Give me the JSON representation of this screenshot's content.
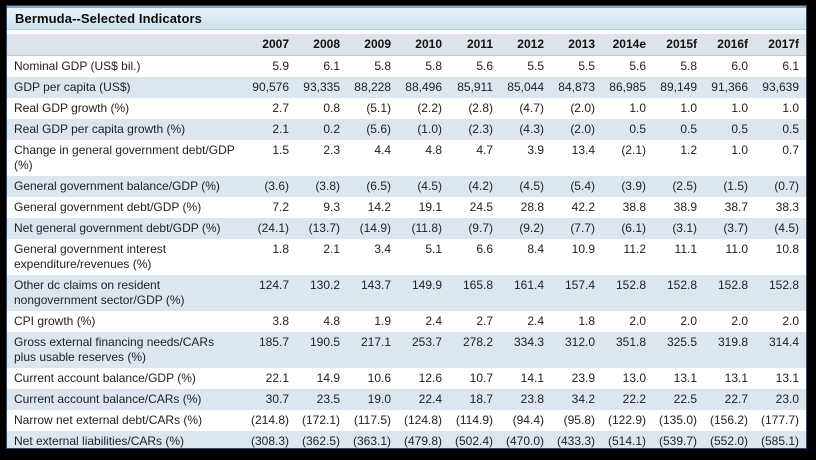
{
  "title": "Bermuda--Selected Indicators",
  "colors": {
    "frame": "#000000",
    "inner_border": "#31506f",
    "title_gradient_top": "#e8f3fa",
    "title_gradient_bottom": "#cde2ef",
    "header_bg": "#dde3ea",
    "row_stripe": "#dce6f1"
  },
  "chart_data": {
    "type": "table",
    "title": "Bermuda--Selected Indicators",
    "year_headers": [
      "2007",
      "2008",
      "2009",
      "2010",
      "2011",
      "2012",
      "2013",
      "2014e",
      "2015f",
      "2016f",
      "2017f"
    ],
    "rows": [
      {
        "label": "Nominal GDP (US$ bil.)",
        "values": [
          "5.9",
          "6.1",
          "5.8",
          "5.8",
          "5.6",
          "5.5",
          "5.5",
          "5.6",
          "5.8",
          "6.0",
          "6.1"
        ]
      },
      {
        "label": "GDP per capita (US$)",
        "values": [
          "90,576",
          "93,335",
          "88,228",
          "88,496",
          "85,911",
          "85,044",
          "84,873",
          "86,985",
          "89,149",
          "91,366",
          "93,639"
        ]
      },
      {
        "label": "Real GDP growth (%)",
        "values": [
          "2.7",
          "0.8",
          "(5.1)",
          "(2.2)",
          "(2.8)",
          "(4.7)",
          "(2.0)",
          "1.0",
          "1.0",
          "1.0",
          "1.0"
        ]
      },
      {
        "label": "Real GDP per capita growth (%)",
        "values": [
          "2.1",
          "0.2",
          "(5.6)",
          "(1.0)",
          "(2.3)",
          "(4.3)",
          "(2.0)",
          "0.5",
          "0.5",
          "0.5",
          "0.5"
        ]
      },
      {
        "label": "Change in general government debt/GDP (%)",
        "values": [
          "1.5",
          "2.3",
          "4.4",
          "4.8",
          "4.7",
          "3.9",
          "13.4",
          "(2.1)",
          "1.2",
          "1.0",
          "0.7"
        ]
      },
      {
        "label": "General government balance/GDP (%)",
        "values": [
          "(3.6)",
          "(3.8)",
          "(6.5)",
          "(4.5)",
          "(4.2)",
          "(4.5)",
          "(5.4)",
          "(3.9)",
          "(2.5)",
          "(1.5)",
          "(0.7)"
        ]
      },
      {
        "label": "General government debt/GDP (%)",
        "values": [
          "7.2",
          "9.3",
          "14.2",
          "19.1",
          "24.5",
          "28.8",
          "42.2",
          "38.8",
          "38.9",
          "38.7",
          "38.3"
        ]
      },
      {
        "label": "Net general government debt/GDP (%)",
        "values": [
          "(24.1)",
          "(13.7)",
          "(14.9)",
          "(11.8)",
          "(9.7)",
          "(9.2)",
          "(7.7)",
          "(6.1)",
          "(3.1)",
          "(3.7)",
          "(4.5)"
        ]
      },
      {
        "label": "General government interest expenditure/revenues (%)",
        "values": [
          "1.8",
          "2.1",
          "3.4",
          "5.1",
          "6.6",
          "8.4",
          "10.9",
          "11.2",
          "11.1",
          "11.0",
          "10.8"
        ]
      },
      {
        "label": "Other dc claims on resident nongovernment sector/GDP (%)",
        "values": [
          "124.7",
          "130.2",
          "143.7",
          "149.9",
          "165.8",
          "161.4",
          "157.4",
          "152.8",
          "152.8",
          "152.8",
          "152.8"
        ]
      },
      {
        "label": "CPI growth (%)",
        "values": [
          "3.8",
          "4.8",
          "1.9",
          "2.4",
          "2.7",
          "2.4",
          "1.8",
          "2.0",
          "2.0",
          "2.0",
          "2.0"
        ]
      },
      {
        "label": "Gross external financing needs/CARs plus usable reserves (%)",
        "values": [
          "185.7",
          "190.5",
          "217.1",
          "253.7",
          "278.2",
          "334.3",
          "312.0",
          "351.8",
          "325.5",
          "319.8",
          "314.4"
        ]
      },
      {
        "label": "Current account balance/GDP (%)",
        "values": [
          "22.1",
          "14.9",
          "10.6",
          "12.6",
          "10.7",
          "14.1",
          "23.9",
          "13.0",
          "13.1",
          "13.1",
          "13.1"
        ]
      },
      {
        "label": "Current account balance/CARs (%)",
        "values": [
          "30.7",
          "23.5",
          "19.0",
          "22.4",
          "18.7",
          "23.8",
          "34.2",
          "22.2",
          "22.5",
          "22.7",
          "23.0"
        ]
      },
      {
        "label": "Narrow net external debt/CARs (%)",
        "values": [
          "(214.8)",
          "(172.1)",
          "(117.5)",
          "(124.8)",
          "(114.9)",
          "(94.4)",
          "(95.8)",
          "(122.9)",
          "(135.0)",
          "(156.2)",
          "(177.7)"
        ]
      },
      {
        "label": "Net external liabilities/CARs (%)",
        "values": [
          "(308.3)",
          "(362.5)",
          "(363.1)",
          "(479.8)",
          "(502.4)",
          "(470.0)",
          "(433.3)",
          "(514.1)",
          "(539.7)",
          "(552.0)",
          "(585.1)"
        ]
      }
    ]
  }
}
